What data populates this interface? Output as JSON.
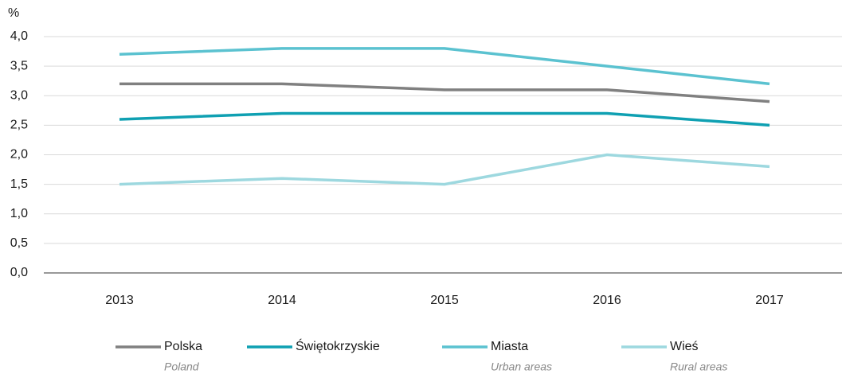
{
  "chart_data": {
    "type": "line",
    "y_unit": "%",
    "categories": [
      "2013",
      "2014",
      "2015",
      "2016",
      "2017"
    ],
    "series": [
      {
        "name": "Polska",
        "legend_subtitle": "Poland",
        "color": "#808080",
        "values": [
          3.2,
          3.2,
          3.1,
          3.1,
          2.9
        ]
      },
      {
        "name": "Świętokrzyskie",
        "color": "#0fa0b2",
        "values": [
          2.6,
          2.7,
          2.7,
          2.7,
          2.5
        ]
      },
      {
        "name": "Miasta",
        "legend_subtitle": "Urban areas",
        "color": "#5bc2d0",
        "values": [
          3.7,
          3.8,
          3.8,
          3.5,
          3.2
        ]
      },
      {
        "name": "Wieś",
        "legend_subtitle": "Rural areas",
        "color": "#9dd8df",
        "values": [
          1.5,
          1.6,
          1.5,
          2.0,
          1.8
        ]
      }
    ],
    "ylim": [
      0,
      4
    ],
    "yticks": [
      {
        "value": 0,
        "label": "0,0"
      },
      {
        "value": 0.5,
        "label": "0,5"
      },
      {
        "value": 1,
        "label": "1,0"
      },
      {
        "value": 1.5,
        "label": "1,5"
      },
      {
        "value": 2,
        "label": "2,0"
      },
      {
        "value": 2.5,
        "label": "2,5"
      },
      {
        "value": 3,
        "label": "3,0"
      },
      {
        "value": 3.5,
        "label": "3,5"
      },
      {
        "value": 4,
        "label": "4,0"
      }
    ],
    "grid": true
  }
}
